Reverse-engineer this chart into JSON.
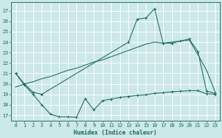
{
  "xlabel": "Humidex (Indice chaleur)",
  "bg_color": "#cce8e8",
  "grid_color": "#ffffff",
  "line_color": "#1a6b5a",
  "xlim": [
    -0.5,
    23.5
  ],
  "ylim": [
    16.5,
    27.8
  ],
  "xticks": [
    0,
    1,
    2,
    3,
    4,
    5,
    6,
    7,
    8,
    9,
    10,
    11,
    12,
    13,
    14,
    15,
    16,
    17,
    18,
    19,
    20,
    21,
    22,
    23
  ],
  "yticks": [
    17,
    18,
    19,
    20,
    21,
    22,
    23,
    24,
    25,
    26,
    27
  ],
  "line1_x": [
    0,
    1,
    2,
    3,
    13,
    14,
    15,
    16,
    17,
    18,
    19,
    20,
    21,
    22,
    23
  ],
  "line1_y": [
    21.0,
    20.0,
    19.2,
    19.0,
    24.0,
    26.2,
    26.3,
    27.2,
    23.9,
    23.9,
    24.1,
    24.3,
    23.1,
    19.3,
    19.1
  ],
  "line2_x": [
    0,
    1,
    2,
    3,
    4,
    5,
    6,
    7,
    8,
    9,
    10,
    11,
    12,
    13,
    14,
    15,
    16,
    17,
    18,
    19,
    20,
    21,
    22,
    23
  ],
  "line2_y": [
    19.7,
    20.0,
    20.2,
    20.5,
    20.7,
    21.0,
    21.3,
    21.5,
    21.8,
    22.1,
    22.3,
    22.6,
    22.9,
    23.2,
    23.5,
    23.8,
    24.0,
    23.9,
    24.0,
    24.1,
    24.2,
    22.8,
    21.3,
    19.2
  ],
  "line3_x": [
    0,
    1,
    2,
    3,
    4,
    5,
    6,
    7,
    8,
    9,
    10,
    11,
    12,
    13,
    14,
    15,
    16,
    17,
    18,
    19,
    20,
    21,
    22,
    23
  ],
  "line3_y": [
    21.0,
    19.9,
    19.0,
    18.0,
    17.1,
    16.85,
    16.85,
    16.8,
    18.6,
    17.5,
    18.4,
    18.55,
    18.7,
    18.8,
    18.9,
    18.95,
    19.1,
    19.15,
    19.25,
    19.3,
    19.35,
    19.35,
    19.05,
    19.0
  ]
}
